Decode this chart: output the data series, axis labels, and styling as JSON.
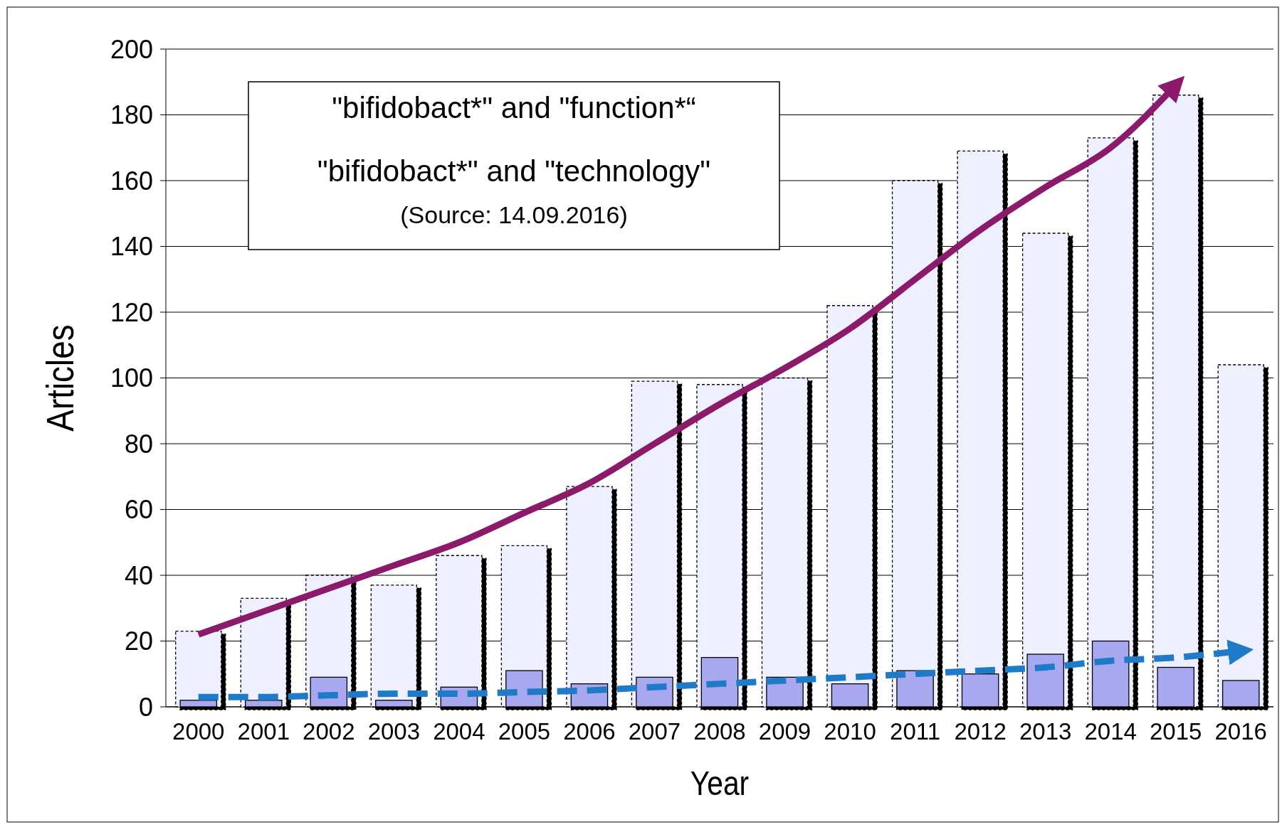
{
  "chart_data": {
    "type": "bar",
    "xlabel": "Year",
    "ylabel": "Articles",
    "categories": [
      "2000",
      "2001",
      "2002",
      "2003",
      "2004",
      "2005",
      "2006",
      "2007",
      "2008",
      "2009",
      "2010",
      "2011",
      "2012",
      "2013",
      "2014",
      "2015",
      "2016"
    ],
    "series": [
      {
        "color": "#eef0ff",
        "values": [
          23,
          33,
          40,
          37,
          46,
          49,
          67,
          99,
          98,
          100,
          122,
          160,
          169,
          144,
          173,
          186,
          104
        ]
      },
      {
        "color": "#a8a8f0",
        "values": [
          2,
          2,
          9,
          2,
          6,
          11,
          7,
          9,
          15,
          9,
          7,
          11,
          10,
          16,
          20,
          12,
          8
        ]
      },
      {
        "type": "line",
        "color": "#8b1a6b",
        "line_style": "solid",
        "values": [
          22,
          29,
          36,
          43,
          50,
          59,
          68,
          80,
          92,
          103,
          115,
          130,
          145,
          158,
          170,
          189,
          null
        ]
      },
      {
        "type": "line",
        "color": "#1f7ac8",
        "line_style": "dashed",
        "values": [
          3,
          3,
          3.5,
          4,
          4,
          4.5,
          5,
          6,
          7,
          8,
          9,
          10,
          11,
          12,
          14,
          15,
          17
        ]
      }
    ],
    "ylim": [
      0,
      200
    ],
    "yticks": [
      0,
      20,
      40,
      60,
      80,
      100,
      120,
      140,
      160,
      180,
      200
    ],
    "grid": "y",
    "marker": "none",
    "annotations": [
      "\"bifidobact*\" and \"function*“",
      "\"bifidobact*\" and \"technology\"",
      "(Source: 14.09.2016)"
    ]
  }
}
